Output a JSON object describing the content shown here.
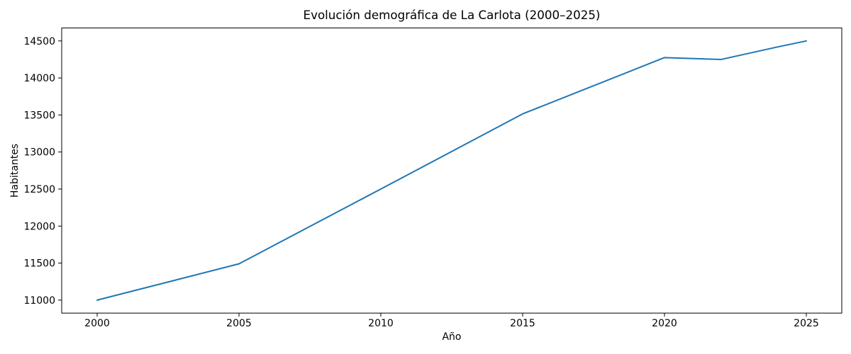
{
  "figure": {
    "background": "#ffffff",
    "text_color": "#000000"
  },
  "chart_data": {
    "type": "line",
    "title": "Evolución demográfica de La Carlota (2000–2025)",
    "xlabel": "Año",
    "ylabel": "Habitantes",
    "x": [
      2000,
      2005,
      2010,
      2015,
      2020,
      2022,
      2024,
      2025
    ],
    "series": [
      {
        "name": "Habitantes",
        "values": [
          11000,
          11490,
          12500,
          13515,
          14275,
          14250,
          14420,
          14500
        ],
        "color": "#1f77b4",
        "linewidth": 2
      }
    ],
    "xticks": [
      2000,
      2005,
      2010,
      2015,
      2020,
      2025
    ],
    "yticks": [
      11000,
      11500,
      12000,
      12500,
      13000,
      13500,
      14000,
      14500
    ],
    "xlim": [
      1998.75,
      2026.25
    ],
    "ylim": [
      10825,
      14675
    ],
    "grid": false,
    "legend_position": "none"
  }
}
